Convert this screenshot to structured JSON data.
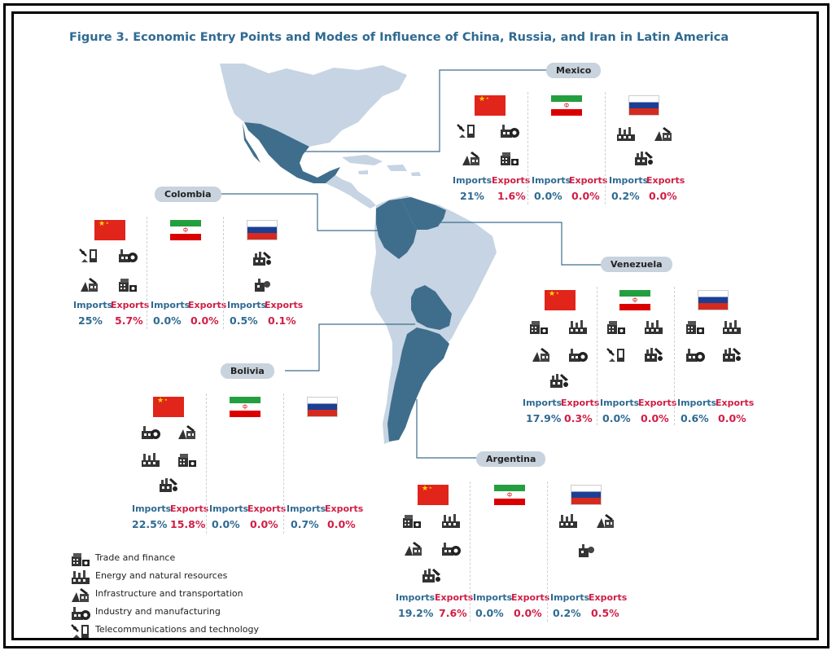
{
  "title": "Figure 3. Economic Entry Points and Modes of Influence of China, Russia, and Iran in Latin America",
  "labels": {
    "imports": "Imports",
    "exports": "Exports"
  },
  "colors": {
    "highlight_country": "#3f6e8c",
    "other_land": "#c6d4e3",
    "imports_text": "#2f6a92",
    "exports_text": "#d01e45"
  },
  "countries": {
    "mexico": {
      "name": "Mexico",
      "partners": [
        {
          "country": "China",
          "icons": [
            "telecom",
            "industry",
            "infrastructure",
            "trade"
          ],
          "imports": "21%",
          "exports": "1.6%"
        },
        {
          "country": "Iran",
          "icons": [],
          "imports": "0.0%",
          "exports": "0.0%"
        },
        {
          "country": "Russia",
          "icons": [
            "energy",
            "infrastructure",
            "industry-hybrid"
          ],
          "imports": "0.2%",
          "exports": "0.0%"
        }
      ]
    },
    "colombia": {
      "name": "Colombia",
      "partners": [
        {
          "country": "China",
          "icons": [
            "telecom",
            "industry",
            "infrastructure",
            "trade"
          ],
          "imports": "25%",
          "exports": "5.7%"
        },
        {
          "country": "Iran",
          "icons": [],
          "imports": "0.0%",
          "exports": "0.0%"
        },
        {
          "country": "Russia",
          "icons": [
            "industry-hybrid",
            "industry-small"
          ],
          "imports": "0.5%",
          "exports": "0.1%"
        }
      ]
    },
    "venezuela": {
      "name": "Venezuela",
      "partners": [
        {
          "country": "China",
          "icons": [
            "trade",
            "energy",
            "infrastructure",
            "industry",
            "industry-hybrid"
          ],
          "imports": "17.9%",
          "exports": "0.3%"
        },
        {
          "country": "Iran",
          "icons": [
            "trade",
            "energy",
            "telecom",
            "industry-hybrid"
          ],
          "imports": "0.0%",
          "exports": "0.0%"
        },
        {
          "country": "Russia",
          "icons": [
            "trade",
            "energy",
            "industry",
            "industry-hybrid"
          ],
          "imports": "0.6%",
          "exports": "0.0%"
        }
      ]
    },
    "bolivia": {
      "name": "Bolivia",
      "partners": [
        {
          "country": "China",
          "icons": [
            "industry",
            "infrastructure",
            "energy",
            "trade",
            "industry-hybrid"
          ],
          "imports": "22.5%",
          "exports": "15.8%"
        },
        {
          "country": "Iran",
          "icons": [],
          "imports": "0.0%",
          "exports": "0.0%"
        },
        {
          "country": "Russia",
          "icons": [],
          "imports": "0.7%",
          "exports": "0.0%"
        }
      ]
    },
    "argentina": {
      "name": "Argentina",
      "partners": [
        {
          "country": "China",
          "icons": [
            "trade",
            "energy",
            "infrastructure",
            "industry",
            "industry-hybrid"
          ],
          "imports": "19.2%",
          "exports": "7.6%"
        },
        {
          "country": "Iran",
          "icons": [],
          "imports": "0.0%",
          "exports": "0.0%"
        },
        {
          "country": "Russia",
          "icons": [
            "energy",
            "infrastructure",
            "industry-small"
          ],
          "imports": "0.2%",
          "exports": "0.5%"
        }
      ]
    }
  },
  "legend": [
    {
      "icon": "trade",
      "label": "Trade and finance"
    },
    {
      "icon": "energy",
      "label": "Energy and natural resources"
    },
    {
      "icon": "infrastructure",
      "label": "Infrastructure and transportation"
    },
    {
      "icon": "industry",
      "label": "Industry and manufacturing"
    },
    {
      "icon": "telecom",
      "label": "Telecommunications and technology"
    }
  ]
}
